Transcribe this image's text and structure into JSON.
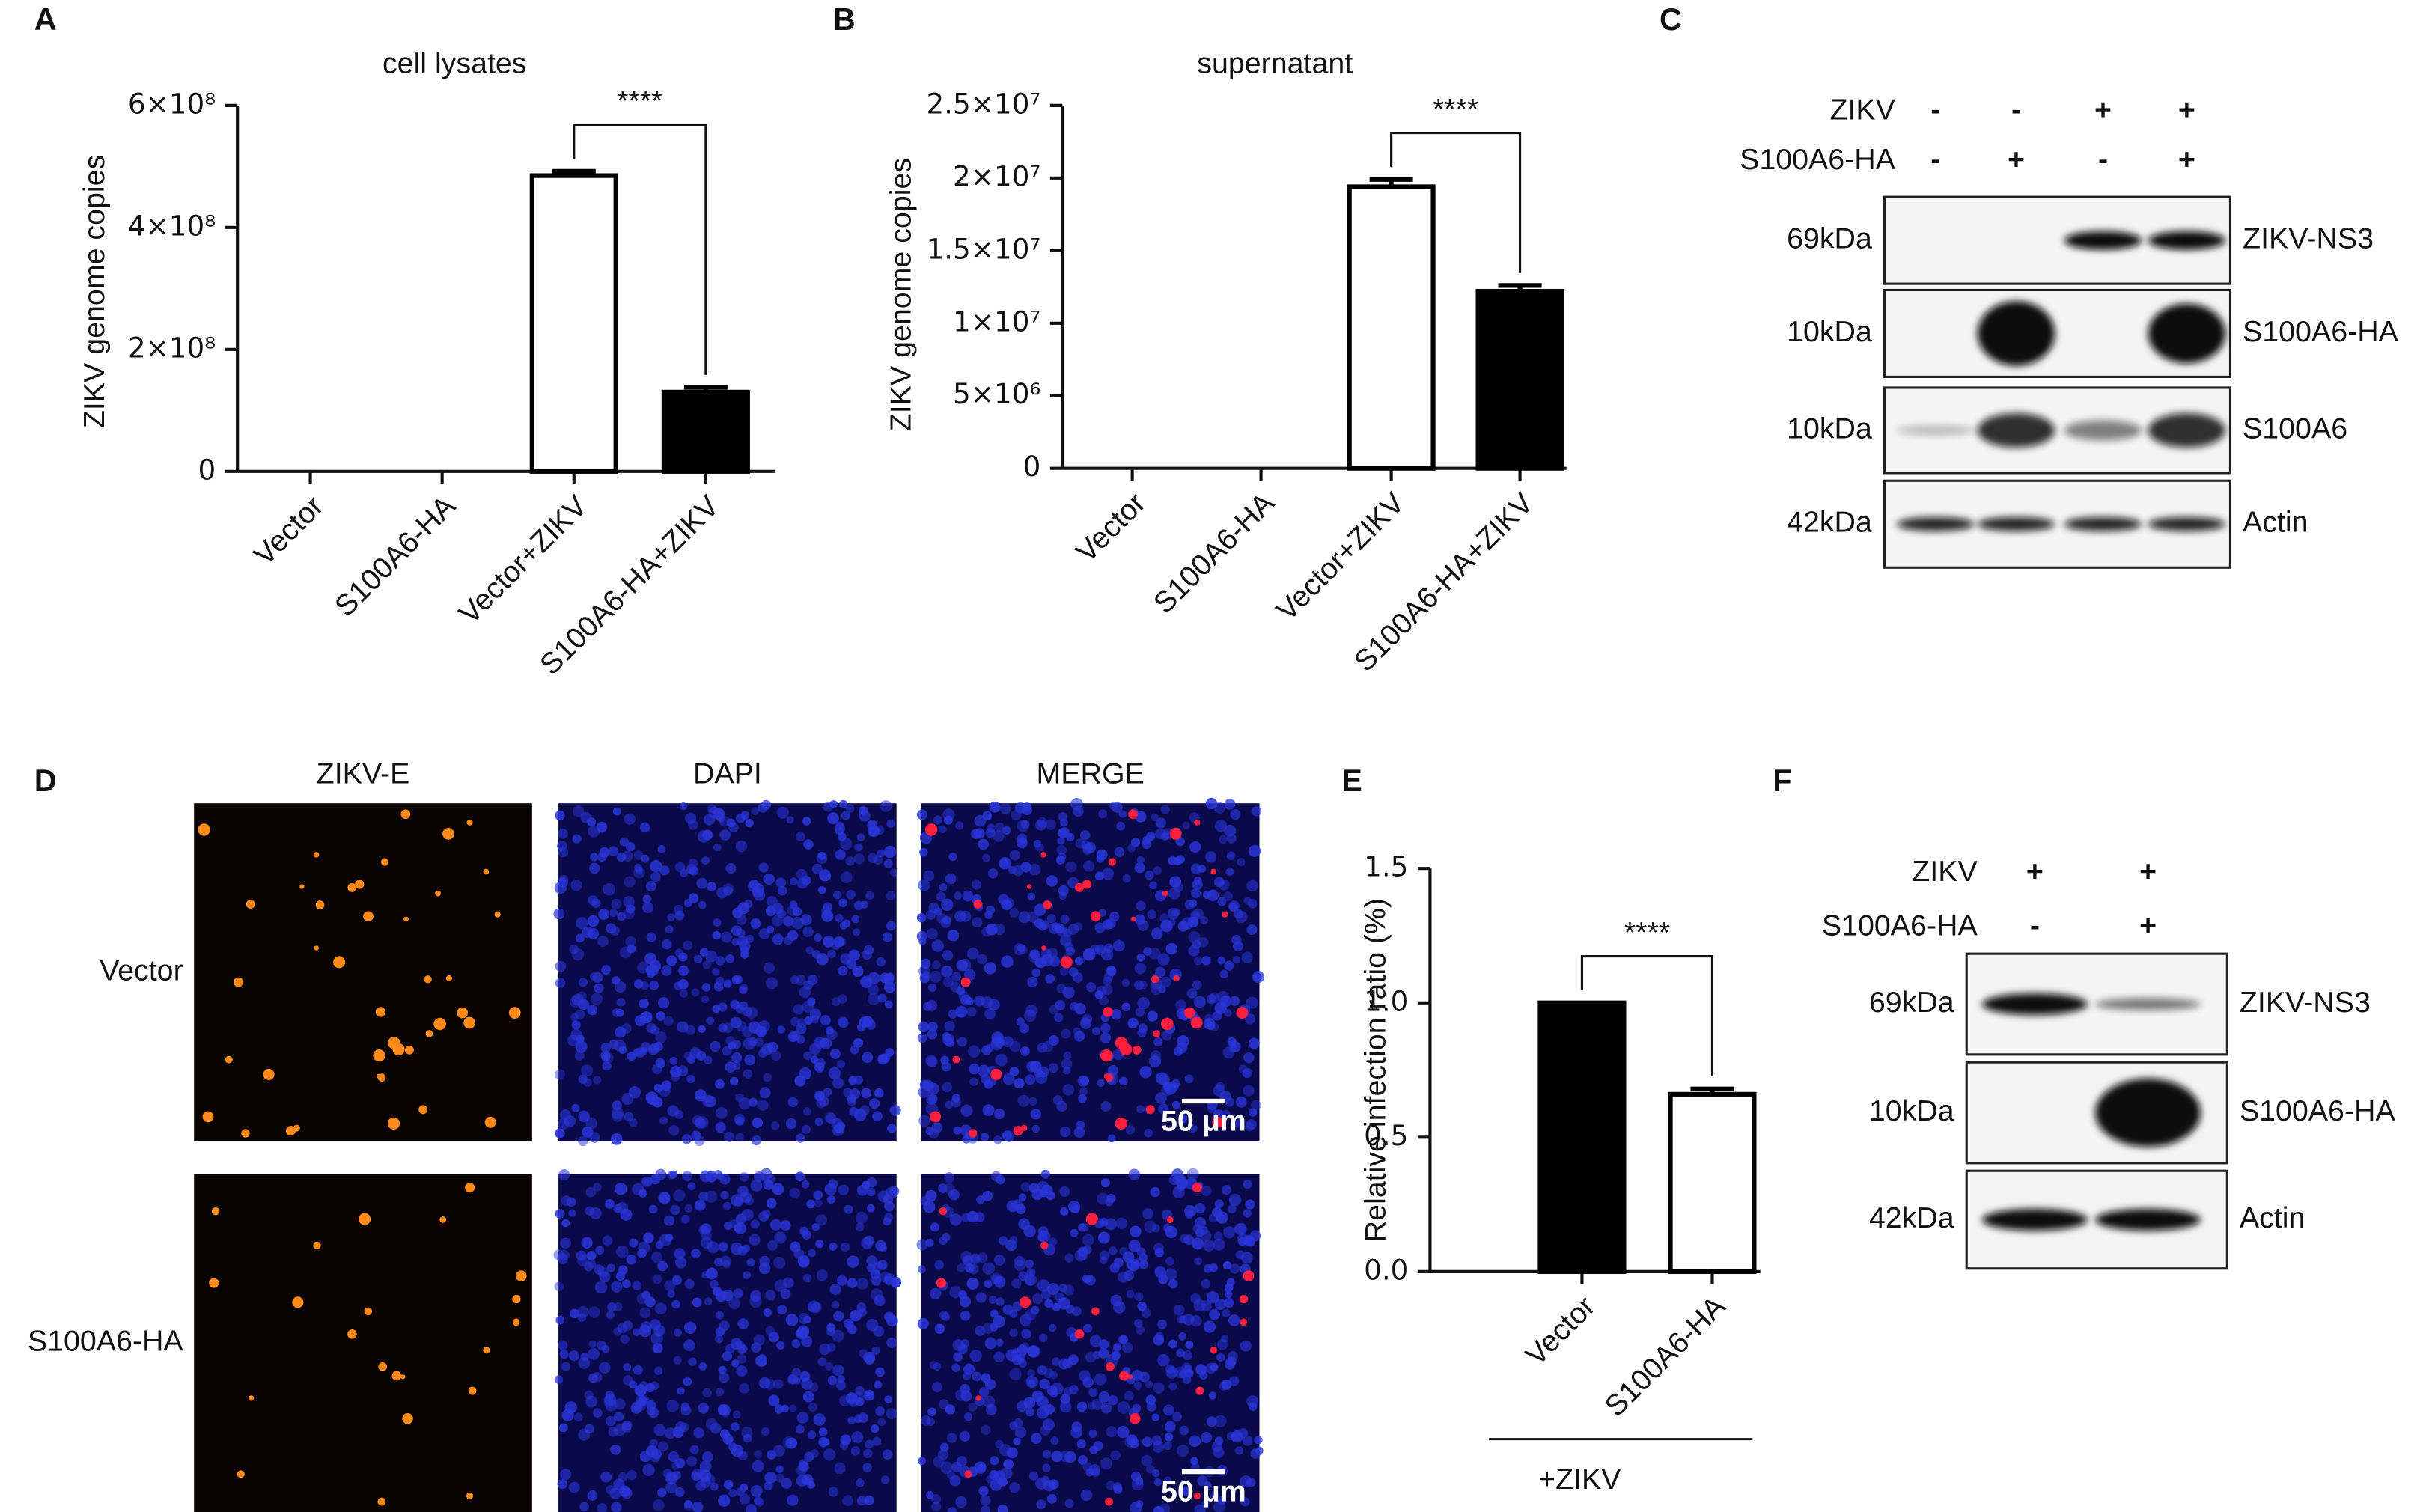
{
  "panel_labels": [
    "A",
    "B",
    "C",
    "D",
    "E",
    "F"
  ],
  "chart_data": [
    {
      "type": "bar",
      "title": "cell lysates",
      "y_label": "ZIKV genome copies",
      "categories": [
        "Vector",
        "S100A6-HA",
        "Vector+ZIKV",
        "S100A6-HA+ZIKV"
      ],
      "values": [
        0,
        0,
        485000000,
        130000000
      ],
      "errors": [
        null,
        null,
        7000000,
        8000000
      ],
      "colors": [
        "#ffffff",
        "#ffffff",
        "#ffffff",
        "#000000"
      ],
      "ylim": [
        0,
        600000000
      ],
      "yticks": [
        0,
        {
          "value": 200000000,
          "label": "2×10⁸"
        },
        {
          "value": 400000000,
          "label": "4×10⁸"
        },
        {
          "value": 600000000,
          "label": "6×10⁸"
        }
      ],
      "grid": false,
      "significance_label": "****"
    },
    {
      "type": "bar",
      "title": "supernatant",
      "y_label": "ZIKV genome copies",
      "categories": [
        "Vector",
        "S100A6-HA",
        "Vector+ZIKV",
        "S100A6-HA+ZIKV"
      ],
      "values": [
        0,
        0,
        19400000,
        12200000
      ],
      "errors": [
        null,
        null,
        500000,
        400000
      ],
      "colors": [
        "#ffffff",
        "#ffffff",
        "#ffffff",
        "#000000"
      ],
      "ylim": [
        0,
        25000000
      ],
      "yticks": [
        0,
        {
          "value": 5000000,
          "label": "5×10⁶"
        },
        {
          "value": 10000000,
          "label": "1×10⁷"
        },
        {
          "value": 15000000,
          "label": "1.5×10⁷"
        },
        {
          "value": 20000000,
          "label": "2×10⁷"
        },
        {
          "value": 25000000,
          "label": "2.5×10⁷"
        }
      ],
      "grid": false,
      "significance_label": "****"
    },
    {
      "type": "bar",
      "y_label": "Relative infection ratio (%)",
      "categories": [
        "Vector",
        "S100A6-HA"
      ],
      "values": [
        1.0,
        0.66
      ],
      "errors": [
        null,
        0.02
      ],
      "colors": [
        "#000000",
        "#ffffff"
      ],
      "ylim": [
        0,
        1.5
      ],
      "yticks": [
        {
          "value": 0,
          "label": "0.0"
        },
        0.5,
        {
          "value": 1,
          "label": "1.0"
        },
        1.5
      ],
      "grid": false,
      "significance_label": "****",
      "group_label": "+ZIKV"
    }
  ],
  "blot_c": {
    "row_labels": [
      "ZIKV",
      "S100A6-HA"
    ],
    "conditions": [
      [
        "-",
        "-",
        "+",
        "+"
      ],
      [
        "-",
        "+",
        "-",
        "+"
      ]
    ],
    "size_labels": [
      "69kDa",
      "10kDa",
      "10kDa",
      "42kDa"
    ],
    "band_labels": [
      "ZIKV-NS3",
      "S100A6-HA",
      "S100A6",
      "Actin"
    ]
  },
  "blot_f": {
    "row_labels": [
      "ZIKV",
      "S100A6-HA"
    ],
    "conditions": [
      [
        "+",
        "+"
      ],
      [
        "-",
        "+"
      ]
    ],
    "size_labels": [
      "69kDa",
      "10kDa",
      "42kDa"
    ],
    "band_labels": [
      "ZIKV-NS3",
      "S100A6-HA",
      "Actin"
    ]
  },
  "microscopy": {
    "columns": [
      "ZIKV-E",
      "DAPI",
      "MERGE"
    ],
    "rows": [
      "Vector",
      "S100A6-HA"
    ],
    "scale_bar": "50 μm"
  }
}
